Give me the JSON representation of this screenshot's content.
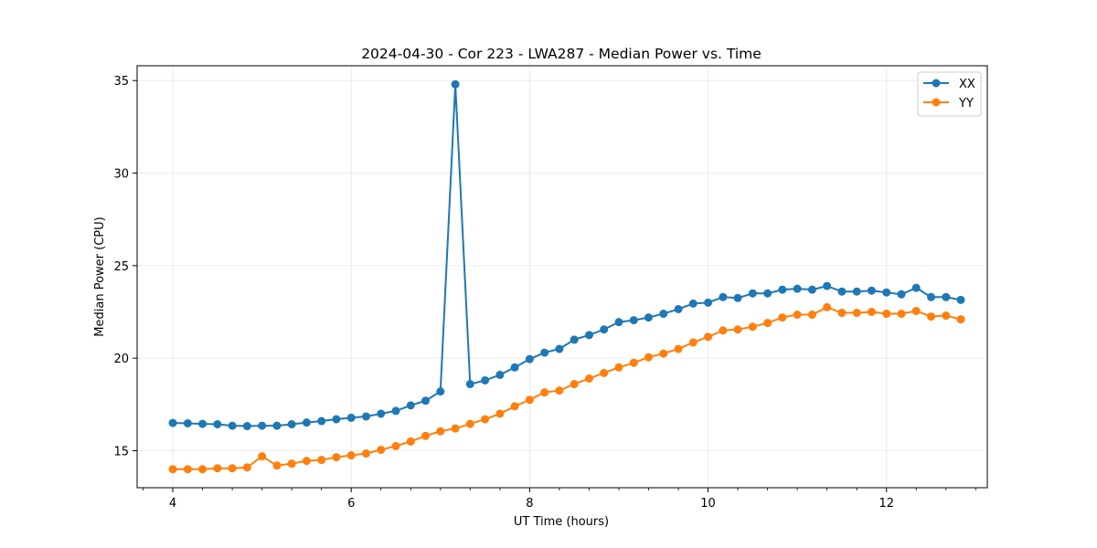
{
  "chart_data": {
    "type": "line",
    "title": "2024-04-30 - Cor 223 - LWA287 - Median Power vs. Time",
    "xlabel": "UT Time (hours)",
    "ylabel": "Median Power (CPU)",
    "xlim": [
      3.6,
      13.13
    ],
    "ylim": [
      13.0,
      35.8
    ],
    "xticks": [
      4,
      6,
      8,
      10,
      12
    ],
    "xtick_labels": [
      "4",
      "6",
      "8",
      "10",
      "12"
    ],
    "x_minor_ticks": [
      3.667,
      4.333,
      4.667,
      5.0,
      5.333,
      5.667,
      6.333,
      6.667,
      7.0,
      7.333,
      7.667,
      8.333,
      8.667,
      9.0,
      9.333,
      9.667,
      10.333,
      10.667,
      11.0,
      11.333,
      11.667,
      12.333,
      12.667,
      13.0
    ],
    "yticks": [
      15,
      20,
      25,
      30,
      35
    ],
    "ytick_labels": [
      "15",
      "20",
      "25",
      "30",
      "35"
    ],
    "grid": true,
    "legend_position": "top-right",
    "x": [
      4.0,
      4.167,
      4.333,
      4.5,
      4.667,
      4.833,
      5.0,
      5.167,
      5.333,
      5.5,
      5.667,
      5.833,
      6.0,
      6.167,
      6.333,
      6.5,
      6.667,
      6.833,
      7.0,
      7.167,
      7.333,
      7.5,
      7.667,
      7.833,
      8.0,
      8.167,
      8.333,
      8.5,
      8.667,
      8.833,
      9.0,
      9.167,
      9.333,
      9.5,
      9.667,
      9.833,
      10.0,
      10.167,
      10.333,
      10.5,
      10.667,
      10.833,
      11.0,
      11.167,
      11.333,
      11.5,
      11.667,
      11.833,
      12.0,
      12.167,
      12.333,
      12.5,
      12.667,
      12.833
    ],
    "series": [
      {
        "name": "XX",
        "color": "#1f77b4",
        "values": [
          16.5,
          16.48,
          16.45,
          16.43,
          16.35,
          16.33,
          16.35,
          16.35,
          16.43,
          16.52,
          16.6,
          16.7,
          16.78,
          16.85,
          17.0,
          17.15,
          17.45,
          17.7,
          18.2,
          34.8,
          18.6,
          18.8,
          19.1,
          19.5,
          19.95,
          20.3,
          20.5,
          21.0,
          21.25,
          21.55,
          21.95,
          22.05,
          22.2,
          22.4,
          22.65,
          22.95,
          23.0,
          23.3,
          23.25,
          23.5,
          23.5,
          23.7,
          23.75,
          23.7,
          23.9,
          23.6,
          23.6,
          23.65,
          23.55,
          23.45,
          23.8,
          23.3,
          23.3,
          23.15
        ]
      },
      {
        "name": "YY",
        "color": "#ff7f0e",
        "values": [
          14.0,
          14.0,
          14.0,
          14.05,
          14.05,
          14.1,
          14.7,
          14.2,
          14.3,
          14.45,
          14.5,
          14.65,
          14.75,
          14.85,
          15.05,
          15.25,
          15.5,
          15.8,
          16.05,
          16.2,
          16.45,
          16.7,
          17.0,
          17.4,
          17.75,
          18.15,
          18.25,
          18.6,
          18.9,
          19.2,
          19.5,
          19.75,
          20.05,
          20.25,
          20.5,
          20.85,
          21.15,
          21.5,
          21.55,
          21.7,
          21.9,
          22.2,
          22.35,
          22.35,
          22.75,
          22.45,
          22.45,
          22.5,
          22.4,
          22.4,
          22.55,
          22.25,
          22.3,
          22.1
        ]
      }
    ]
  }
}
